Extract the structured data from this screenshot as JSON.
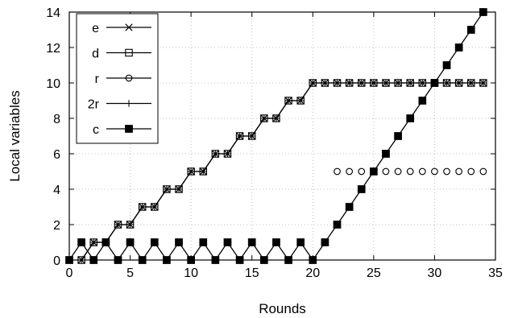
{
  "chart_data": {
    "type": "line",
    "xlabel": "Rounds",
    "ylabel": "Local variables",
    "xlim": [
      0,
      35
    ],
    "ylim": [
      0,
      14
    ],
    "xticks": [
      0,
      5,
      10,
      15,
      20,
      25,
      30,
      35
    ],
    "yticks": [
      0,
      2,
      4,
      6,
      8,
      10,
      12,
      14
    ],
    "grid": true,
    "legend_position": "top-left",
    "series": [
      {
        "name": "e",
        "marker": "x",
        "x": [
          1,
          2,
          3,
          4,
          5,
          6,
          7,
          8,
          9,
          10,
          11,
          12,
          13,
          14,
          15,
          16,
          17,
          18,
          19,
          20,
          21,
          22,
          23,
          24,
          25,
          26,
          27,
          28,
          29,
          30,
          31,
          32,
          33,
          34
        ],
        "y": [
          0,
          1,
          1,
          2,
          2,
          3,
          3,
          4,
          4,
          5,
          5,
          6,
          6,
          7,
          7,
          8,
          8,
          9,
          9,
          10,
          10,
          10,
          10,
          10,
          10,
          10,
          10,
          10,
          10,
          10,
          10,
          10,
          10,
          10
        ]
      },
      {
        "name": "d",
        "marker": "open-square",
        "x": [
          1,
          2,
          3,
          4,
          5,
          6,
          7,
          8,
          9,
          10,
          11,
          12,
          13,
          14,
          15,
          16,
          17,
          18,
          19,
          20,
          21,
          22,
          23,
          24,
          25,
          26,
          27,
          28,
          29,
          30,
          31,
          32,
          33,
          34
        ],
        "y": [
          0,
          1,
          1,
          2,
          2,
          3,
          3,
          4,
          4,
          5,
          5,
          6,
          6,
          7,
          7,
          8,
          8,
          9,
          9,
          10,
          10,
          10,
          10,
          10,
          10,
          10,
          10,
          10,
          10,
          10,
          10,
          10,
          10,
          10
        ]
      },
      {
        "name": "r",
        "marker": "open-circle",
        "line": false,
        "x": [
          22,
          23,
          24,
          25,
          26,
          27,
          28,
          29,
          30,
          31,
          32,
          33,
          34
        ],
        "y": [
          5,
          5,
          5,
          5,
          5,
          5,
          5,
          5,
          5,
          5,
          5,
          5,
          5
        ]
      },
      {
        "name": "2r",
        "marker": "plus",
        "line": false,
        "x": [
          1,
          2,
          3,
          4,
          5,
          6,
          7,
          8,
          9,
          10,
          11,
          12,
          13,
          14,
          15,
          16,
          17,
          18,
          19,
          20,
          21,
          22,
          23,
          24,
          25,
          26,
          27,
          28,
          29,
          30,
          31,
          32,
          33,
          34
        ],
        "y": [
          0,
          1,
          1,
          2,
          2,
          3,
          3,
          4,
          4,
          5,
          5,
          6,
          6,
          7,
          7,
          8,
          8,
          9,
          9,
          10,
          10,
          10,
          10,
          10,
          10,
          10,
          10,
          10,
          10,
          10,
          10,
          10,
          10,
          10
        ]
      },
      {
        "name": "c",
        "marker": "filled-square",
        "x": [
          0,
          1,
          2,
          3,
          4,
          5,
          6,
          7,
          8,
          9,
          10,
          11,
          12,
          13,
          14,
          15,
          16,
          17,
          18,
          19,
          20,
          21,
          22,
          23,
          24,
          25,
          26,
          27,
          28,
          29,
          30,
          31,
          32,
          33,
          34
        ],
        "y": [
          0,
          1,
          0,
          1,
          0,
          1,
          0,
          1,
          0,
          1,
          0,
          1,
          0,
          1,
          0,
          1,
          0,
          1,
          0,
          1,
          0,
          1,
          2,
          3,
          4,
          5,
          6,
          7,
          8,
          9,
          10,
          11,
          12,
          13,
          14
        ]
      }
    ]
  }
}
